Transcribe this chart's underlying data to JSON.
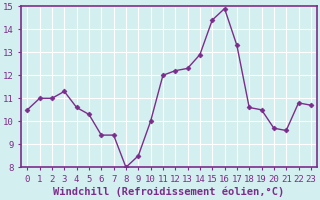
{
  "x": [
    0,
    1,
    2,
    3,
    4,
    5,
    6,
    7,
    8,
    9,
    10,
    11,
    12,
    13,
    14,
    15,
    16,
    17,
    18,
    19,
    20,
    21,
    22,
    23
  ],
  "y": [
    10.5,
    11.0,
    11.0,
    11.3,
    10.6,
    10.3,
    9.4,
    9.4,
    8.0,
    8.5,
    10.0,
    12.0,
    12.2,
    12.3,
    12.9,
    14.4,
    14.9,
    13.3,
    10.6,
    10.5,
    9.7,
    9.6,
    10.8,
    10.7
  ],
  "line_color": "#7B2D8B",
  "marker": "D",
  "marker_size": 2.5,
  "bg_color": "#d4efef",
  "grid_color": "#ffffff",
  "xlabel": "Windchill (Refroidissement éolien,°C)",
  "xlabel_color": "#7B2D8B",
  "ylim": [
    8,
    15
  ],
  "xlim": [
    -0.5,
    23.5
  ],
  "yticks": [
    8,
    9,
    10,
    11,
    12,
    13,
    14,
    15
  ],
  "xticks": [
    0,
    1,
    2,
    3,
    4,
    5,
    6,
    7,
    8,
    9,
    10,
    11,
    12,
    13,
    14,
    15,
    16,
    17,
    18,
    19,
    20,
    21,
    22,
    23
  ],
  "tick_label_color": "#7B2D8B",
  "tick_label_fontsize": 6.5,
  "xlabel_fontsize": 7.5,
  "linewidth": 1.0,
  "spine_color": "#7B2D8B"
}
